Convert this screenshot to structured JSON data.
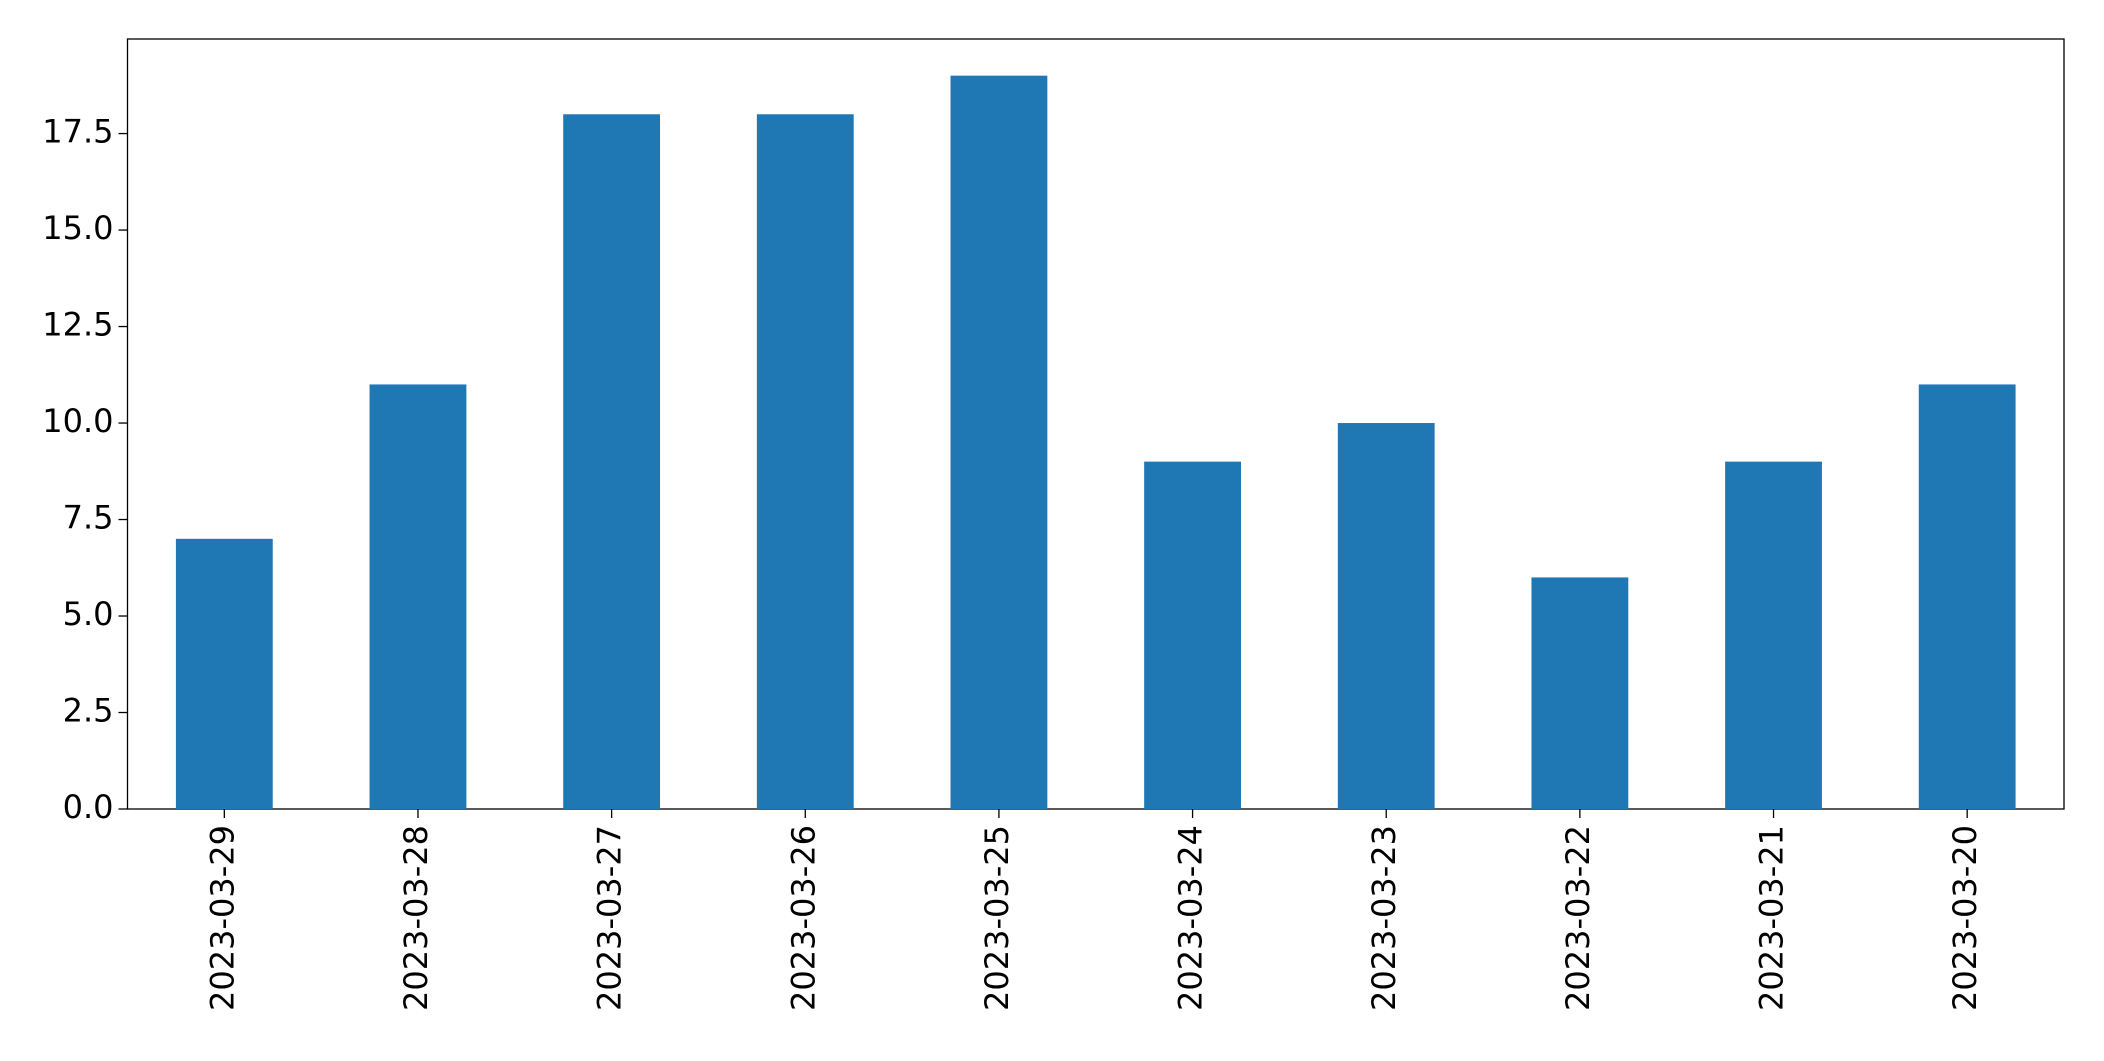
{
  "chart_data": {
    "type": "bar",
    "categories": [
      "2023-03-29",
      "2023-03-28",
      "2023-03-27",
      "2023-03-26",
      "2023-03-25",
      "2023-03-24",
      "2023-03-23",
      "2023-03-22",
      "2023-03-21",
      "2023-03-20"
    ],
    "values": [
      7,
      11,
      18,
      18,
      19,
      9,
      10,
      6,
      9,
      11
    ],
    "color": "#1f77b4",
    "ylim": [
      0,
      19.95
    ],
    "yticks": [
      {
        "value": 0,
        "label": "0.0"
      },
      2.5,
      {
        "value": 5,
        "label": "5.0"
      },
      7.5,
      {
        "value": 10,
        "label": "10.0"
      },
      12.5,
      {
        "value": 15,
        "label": "15.0"
      },
      17.5
    ],
    "grid": false
  }
}
